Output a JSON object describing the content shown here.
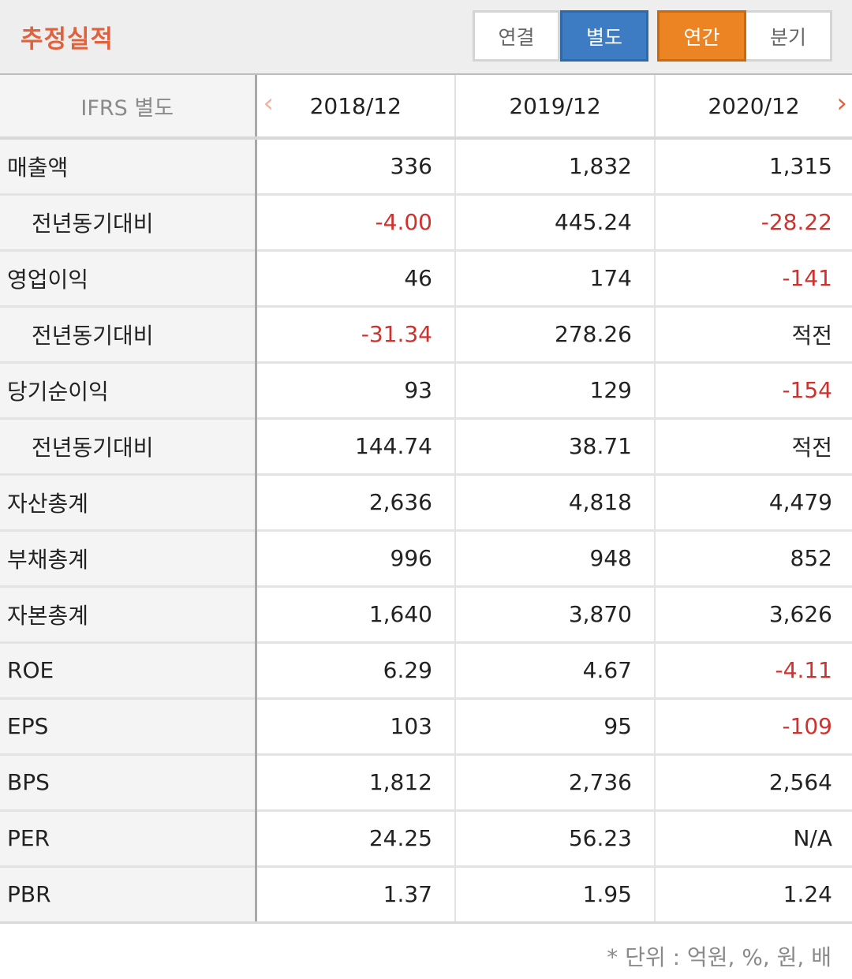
{
  "header": {
    "title": "추정실적",
    "consolidation": {
      "options": [
        "연결",
        "별도"
      ],
      "selected": "별도"
    },
    "period": {
      "options": [
        "연간",
        "분기"
      ],
      "selected": "연간"
    }
  },
  "table": {
    "corner_label": "IFRS 별도",
    "prev_icon": "chevron-left-icon",
    "next_icon": "chevron-right-icon",
    "columns": [
      "2018/12",
      "2019/12",
      "2020/12"
    ],
    "rows": [
      {
        "label": "매출액",
        "indent": false,
        "values": [
          "336",
          "1,832",
          "1,315"
        ],
        "negative": [
          false,
          false,
          false
        ]
      },
      {
        "label": "전년동기대비",
        "indent": true,
        "values": [
          "-4.00",
          "445.24",
          "-28.22"
        ],
        "negative": [
          true,
          false,
          true
        ]
      },
      {
        "label": "영업이익",
        "indent": false,
        "values": [
          "46",
          "174",
          "-141"
        ],
        "negative": [
          false,
          false,
          true
        ]
      },
      {
        "label": "전년동기대비",
        "indent": true,
        "values": [
          "-31.34",
          "278.26",
          "적전"
        ],
        "negative": [
          true,
          false,
          false
        ]
      },
      {
        "label": "당기순이익",
        "indent": false,
        "values": [
          "93",
          "129",
          "-154"
        ],
        "negative": [
          false,
          false,
          true
        ]
      },
      {
        "label": "전년동기대비",
        "indent": true,
        "values": [
          "144.74",
          "38.71",
          "적전"
        ],
        "negative": [
          false,
          false,
          false
        ]
      },
      {
        "label": "자산총계",
        "indent": false,
        "values": [
          "2,636",
          "4,818",
          "4,479"
        ],
        "negative": [
          false,
          false,
          false
        ]
      },
      {
        "label": "부채총계",
        "indent": false,
        "values": [
          "996",
          "948",
          "852"
        ],
        "negative": [
          false,
          false,
          false
        ]
      },
      {
        "label": "자본총계",
        "indent": false,
        "values": [
          "1,640",
          "3,870",
          "3,626"
        ],
        "negative": [
          false,
          false,
          false
        ]
      },
      {
        "label": "ROE",
        "indent": false,
        "values": [
          "6.29",
          "4.67",
          "-4.11"
        ],
        "negative": [
          false,
          false,
          true
        ]
      },
      {
        "label": "EPS",
        "indent": false,
        "values": [
          "103",
          "95",
          "-109"
        ],
        "negative": [
          false,
          false,
          true
        ]
      },
      {
        "label": "BPS",
        "indent": false,
        "values": [
          "1,812",
          "2,736",
          "2,564"
        ],
        "negative": [
          false,
          false,
          false
        ]
      },
      {
        "label": "PER",
        "indent": false,
        "values": [
          "24.25",
          "56.23",
          "N/A"
        ],
        "negative": [
          false,
          false,
          false
        ]
      },
      {
        "label": "PBR",
        "indent": false,
        "values": [
          "1.37",
          "1.95",
          "1.24"
        ],
        "negative": [
          false,
          false,
          false
        ]
      }
    ]
  },
  "footnote": "* 단위 : 억원, %, 원, 배",
  "colors": {
    "accent": "#e0623c",
    "selected_blue": "#3d7cc2",
    "selected_orange": "#ec8424",
    "negative": "#d0312d"
  }
}
